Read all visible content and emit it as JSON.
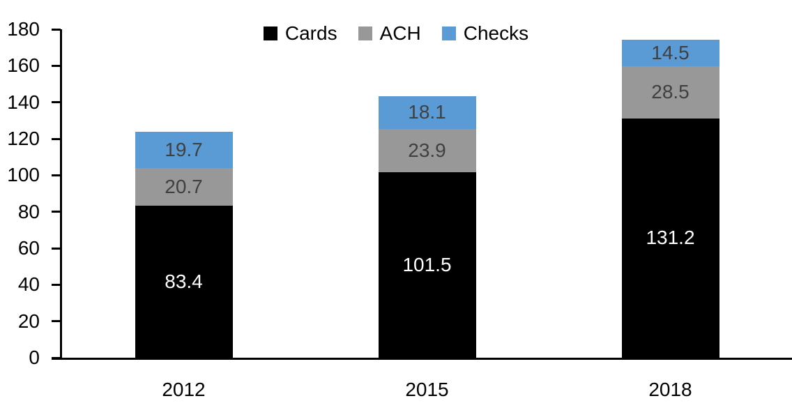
{
  "chart_data": {
    "type": "bar",
    "stacked": true,
    "title": "",
    "xlabel": "",
    "ylabel": "",
    "categories": [
      "2012",
      "2015",
      "2018"
    ],
    "series": [
      {
        "name": "Cards",
        "color": "#000000",
        "label_color": "#ffffff",
        "values": [
          83.4,
          101.5,
          131.2
        ]
      },
      {
        "name": "ACH",
        "color": "#989898",
        "label_color": "#404040",
        "values": [
          20.7,
          23.9,
          28.5
        ]
      },
      {
        "name": "Checks",
        "color": "#5b9bd5",
        "label_color": "#404040",
        "values": [
          19.7,
          18.1,
          14.5
        ]
      }
    ],
    "ylim": [
      0,
      180
    ],
    "yticks": [
      0,
      20,
      40,
      60,
      80,
      100,
      120,
      140,
      160,
      180
    ],
    "legend_position": "top-center",
    "grid": false,
    "data_labels": true,
    "axis_color": "#000000",
    "background_color": "#ffffff"
  }
}
